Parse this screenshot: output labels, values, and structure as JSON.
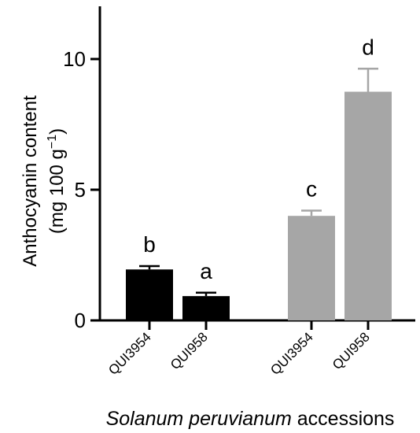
{
  "chart_data": {
    "type": "bar",
    "xlabel_italic": "Solanum peruvianum",
    "xlabel_rest": " accessions",
    "ylabel_line1": "Anthocyanin content",
    "ylabel_line2_prefix": "(mg 100 g",
    "ylabel_line2_exp": "−1",
    "ylabel_line2_suffix": ")",
    "ylim": [
      0,
      12
    ],
    "yticks": [
      0,
      5,
      10
    ],
    "grid": false,
    "bars": [
      {
        "category": "QUI3954",
        "value": 1.95,
        "error": 0.13,
        "letter": "b",
        "color": "#000000"
      },
      {
        "category": "QUI958",
        "value": 0.93,
        "error": 0.13,
        "letter": "a",
        "color": "#000000"
      },
      {
        "category": "QUI3954",
        "value": 4.0,
        "error": 0.2,
        "letter": "c",
        "color": "#a6a6a6"
      },
      {
        "category": "QUI958",
        "value": 8.75,
        "error": 0.88,
        "letter": "d",
        "color": "#a6a6a6"
      }
    ]
  }
}
